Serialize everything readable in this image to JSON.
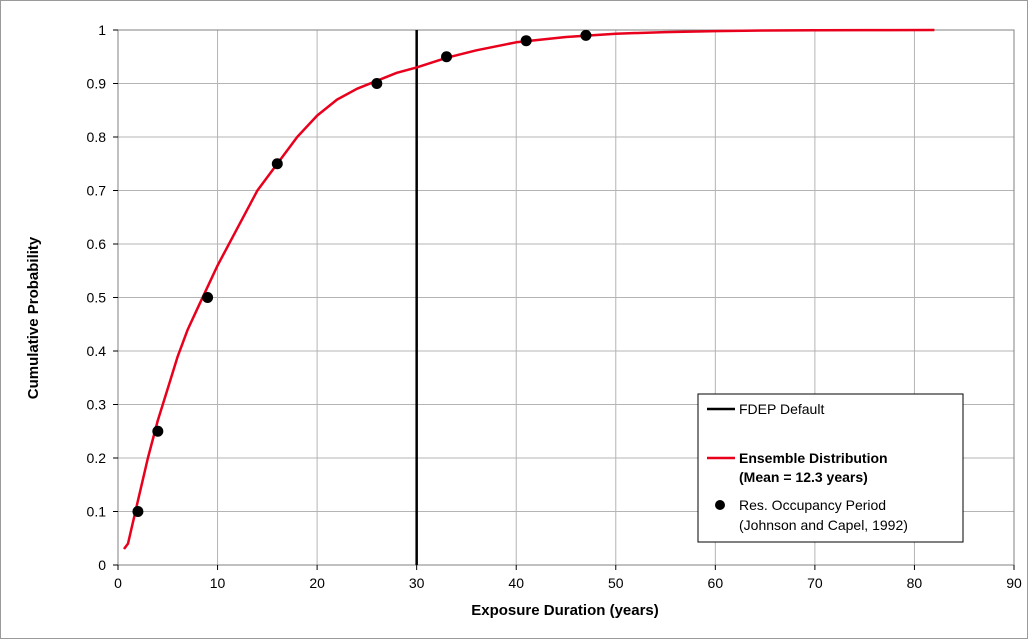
{
  "chart_data": {
    "type": "line",
    "xlabel": "Exposure Duration (years)",
    "ylabel": "Cumulative Probability",
    "xlim": [
      0,
      90
    ],
    "ylim": [
      0,
      1
    ],
    "x_ticks": [
      "0",
      "10",
      "20",
      "30",
      "40",
      "50",
      "60",
      "70",
      "80",
      "90"
    ],
    "y_ticks": [
      "0",
      "0.1",
      "0.2",
      "0.3",
      "0.4",
      "0.5",
      "0.6",
      "0.7",
      "0.8",
      "0.9",
      "1"
    ],
    "grid": true,
    "legend_position": "bottom-right",
    "series": [
      {
        "name": "FDEP Default",
        "kind": "vertical-line",
        "color": "#000000",
        "x": [
          30,
          30
        ],
        "y": [
          0,
          1
        ]
      },
      {
        "name": "Ensemble Distribution",
        "name_line2": "(Mean = 12.3 years)",
        "kind": "line",
        "color": "#e8001c",
        "x": [
          0.6,
          1,
          2,
          3,
          4,
          5,
          6,
          7,
          8,
          9,
          10,
          12,
          14,
          16,
          18,
          20,
          22,
          24,
          26,
          28,
          30,
          33,
          36,
          40,
          45,
          50,
          55,
          60,
          65,
          70,
          75,
          82
        ],
        "y": [
          0.03,
          0.04,
          0.12,
          0.2,
          0.27,
          0.33,
          0.39,
          0.44,
          0.48,
          0.52,
          0.56,
          0.63,
          0.7,
          0.75,
          0.8,
          0.84,
          0.87,
          0.89,
          0.905,
          0.92,
          0.93,
          0.948,
          0.962,
          0.977,
          0.987,
          0.993,
          0.996,
          0.998,
          0.999,
          0.9995,
          0.9998,
          1.0
        ]
      },
      {
        "name": "Res. Occupancy Period",
        "name_line2": "(Johnson and Capel, 1992)",
        "kind": "scatter",
        "color": "#000000",
        "x": [
          2,
          4,
          9,
          16,
          26,
          33,
          41,
          47
        ],
        "y": [
          0.1,
          0.25,
          0.5,
          0.75,
          0.9,
          0.95,
          0.98,
          0.99
        ]
      }
    ]
  }
}
